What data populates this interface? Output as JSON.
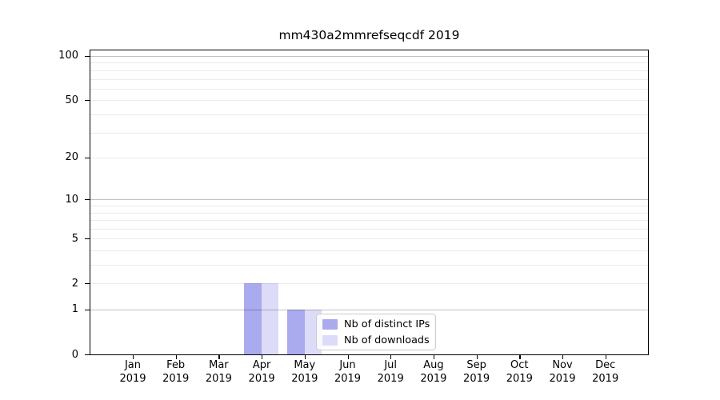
{
  "page": {
    "background_color": "#ffffff"
  },
  "chart_data": {
    "type": "bar",
    "title": "mm430a2mmrefseqcdf 2019",
    "categories": [
      "Jan 2019",
      "Feb 2019",
      "Mar 2019",
      "Apr 2019",
      "May 2019",
      "Jun 2019",
      "Jul 2019",
      "Aug 2019",
      "Sep 2019",
      "Oct 2019",
      "Nov 2019",
      "Dec 2019"
    ],
    "series": [
      {
        "name": "Nb of distinct IPs",
        "color": "#aaaaee",
        "values": [
          0,
          0,
          0,
          2,
          1,
          0,
          0,
          0,
          0,
          0,
          0,
          0
        ]
      },
      {
        "name": "Nb of downloads",
        "color": "#dcdcf8",
        "values": [
          0,
          0,
          0,
          2,
          1,
          0,
          0,
          0,
          0,
          0,
          0,
          0
        ]
      }
    ],
    "xlabel": "",
    "ylabel": "",
    "yscale": "log1p",
    "ylim": [
      0,
      100
    ],
    "yticks": [
      0,
      1,
      2,
      5,
      10,
      20,
      50,
      100
    ],
    "grid": "horizontal",
    "grid_major_values": [
      1,
      10,
      100
    ],
    "grid_minor_values": [
      2,
      3,
      4,
      5,
      6,
      7,
      8,
      9,
      20,
      30,
      40,
      50,
      60,
      70,
      80,
      90
    ],
    "colors": {
      "grid_major": "rgba(0,0,0,0.24)",
      "grid_minor": "rgba(0,0,0,0.08)",
      "axis": "#000000",
      "text": "#000000",
      "legend_border": "#cccccc"
    },
    "legend": {
      "position": "inside-lower-middle"
    }
  }
}
